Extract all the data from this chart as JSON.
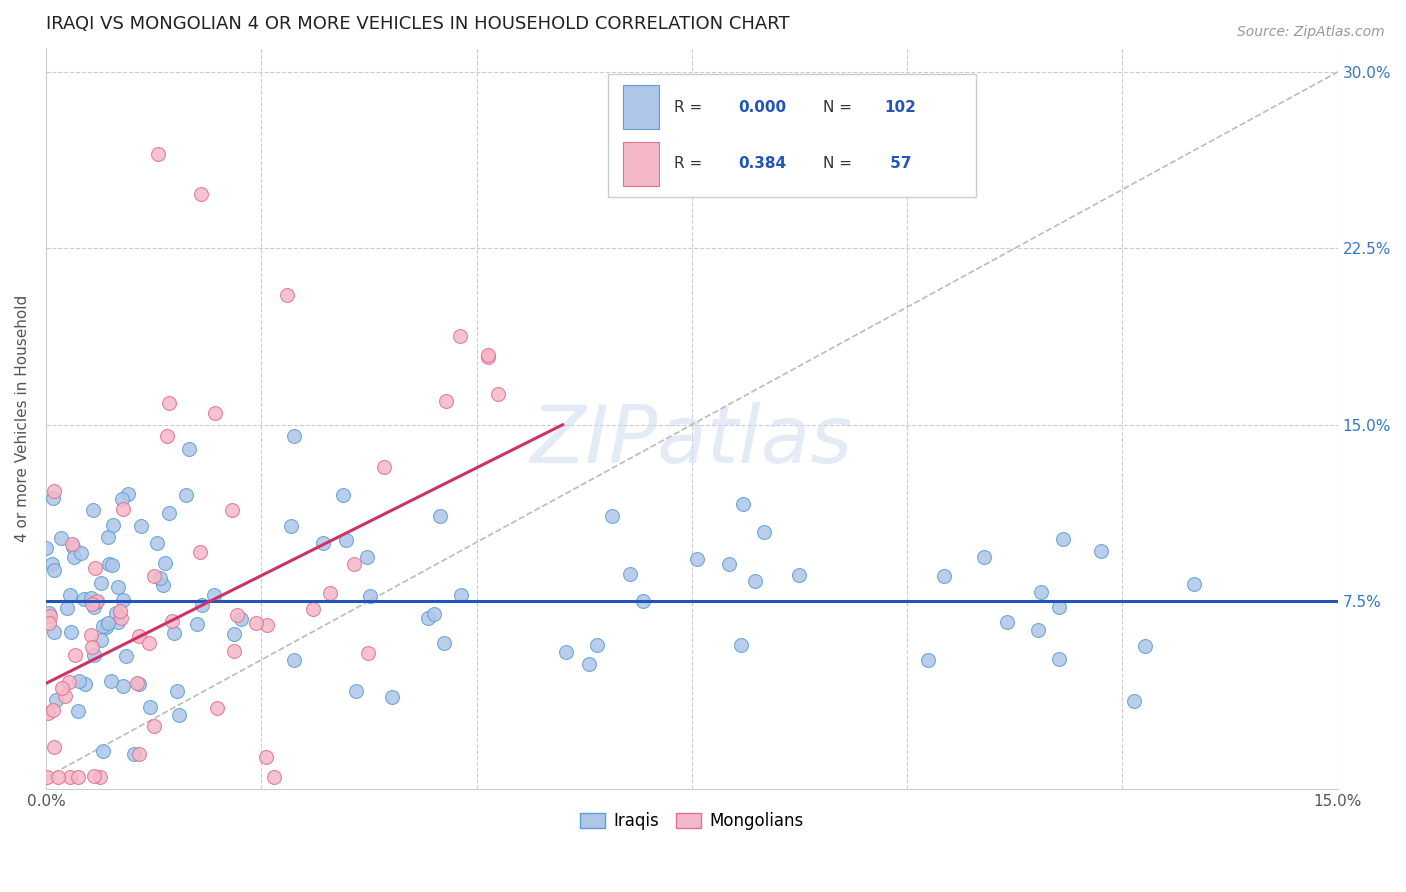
{
  "title": "IRAQI VS MONGOLIAN 4 OR MORE VEHICLES IN HOUSEHOLD CORRELATION CHART",
  "source": "Source: ZipAtlas.com",
  "ylabel": "4 or more Vehicles in Household",
  "xlim": [
    0,
    0.15
  ],
  "ylim": [
    -0.005,
    0.31
  ],
  "xtick_vals": [
    0.0,
    0.025,
    0.05,
    0.075,
    0.1,
    0.125,
    0.15
  ],
  "xtick_labels": [
    "0.0%",
    "",
    "",
    "",
    "",
    "",
    "15.0%"
  ],
  "ytick_vals": [
    0.0,
    0.075,
    0.15,
    0.225,
    0.3
  ],
  "ytick_labels_right": [
    "",
    "7.5%",
    "15.0%",
    "22.5%",
    "30.0%"
  ],
  "iraqis_color": "#aec6e8",
  "mongolians_color": "#f4b8c8",
  "iraqis_edge": "#5a9fd4",
  "mongolians_edge": "#e07090",
  "iraqis_line_color": "#2255bb",
  "mongolians_line_color": "#cc3366",
  "diagonal_color": "#bbbbbb",
  "watermark": "ZIPatlas",
  "background_color": "#ffffff",
  "grid_color": "#cccccc",
  "legend_R_iraqis": "0.000",
  "legend_N_iraqis": "102",
  "legend_R_mongolians": "0.384",
  "legend_N_mongolians": "57"
}
